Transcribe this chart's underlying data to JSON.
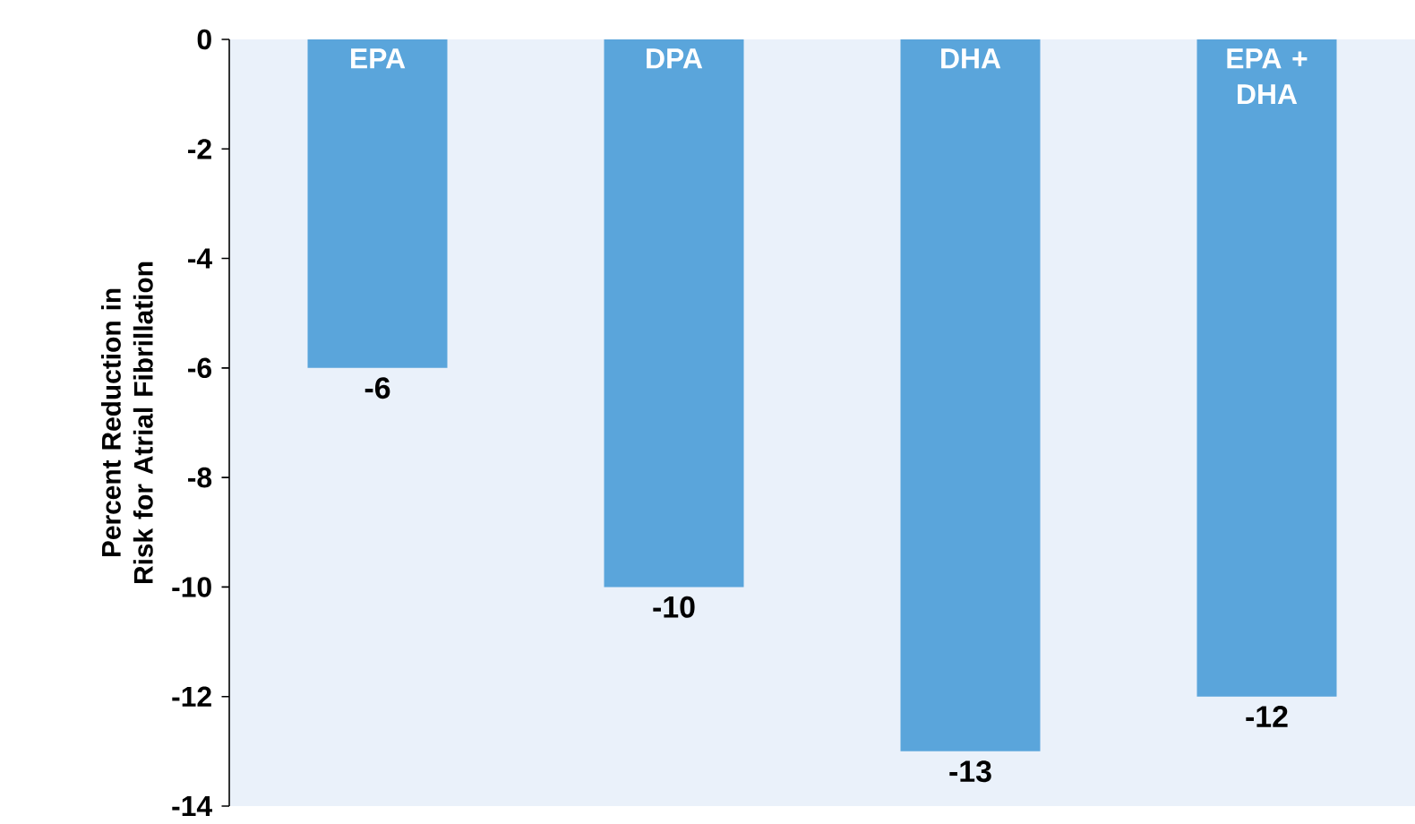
{
  "chart_data": {
    "type": "bar",
    "ylabel": "Percent Reduction in Risk for Atrial Fibrillation",
    "categories": [
      "EPA",
      "DPA",
      "DHA",
      "EPA + DHA"
    ],
    "values": [
      -6,
      -10,
      -13,
      -12
    ],
    "color": "#5aa5db",
    "ylim": [
      -14,
      0
    ],
    "yticks": [
      0,
      -2,
      -4,
      -6,
      -8,
      -10,
      -12,
      -14
    ],
    "data_labels": true
  }
}
